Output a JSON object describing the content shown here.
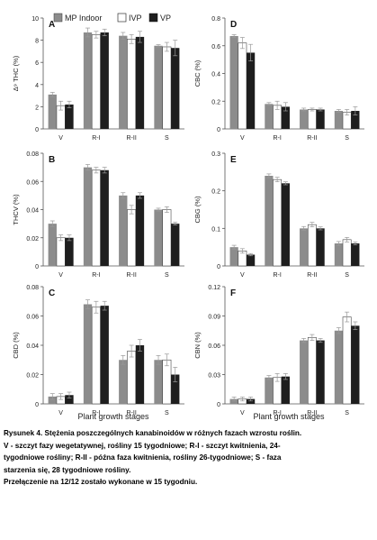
{
  "legend": {
    "items": [
      "MP Indoor",
      "IVP",
      "VP"
    ]
  },
  "colors": {
    "MP Indoor": "#8c8c8c",
    "IVP": "#ffffff",
    "VP": "#1e1e1e"
  },
  "xlabel_shared": "Plant growth stages",
  "chart_data": [
    {
      "type": "bar",
      "letter": "A",
      "ylabel": "Δ⁹ THC (%)",
      "ylim": [
        0,
        10
      ],
      "yticks": [
        "0",
        "2",
        "4",
        "6",
        "8",
        "10"
      ],
      "categories": [
        "V",
        "R-I",
        "R-II",
        "S"
      ],
      "series": [
        {
          "name": "MP Indoor",
          "values": [
            3.1,
            8.7,
            8.4,
            7.5
          ],
          "errors": [
            0.2,
            0.4,
            0.3,
            0.1
          ]
        },
        {
          "name": "IVP",
          "values": [
            2.1,
            8.5,
            8.1,
            7.4
          ],
          "errors": [
            0.4,
            0.3,
            0.4,
            0.4
          ]
        },
        {
          "name": "VP",
          "values": [
            2.2,
            8.7,
            8.3,
            7.3
          ],
          "errors": [
            0.3,
            0.3,
            0.5,
            0.7
          ]
        }
      ]
    },
    {
      "type": "bar",
      "letter": "D",
      "ylabel": "CBC (%)",
      "ylim": [
        0,
        0.8
      ],
      "yticks": [
        "0",
        "0.2",
        "0.4",
        "0.6",
        "0.8"
      ],
      "categories": [
        "V",
        "R-I",
        "R-II",
        "S"
      ],
      "series": [
        {
          "name": "MP Indoor",
          "values": [
            0.67,
            0.18,
            0.14,
            0.13
          ],
          "errors": [
            0.01,
            0.01,
            0.01,
            0.01
          ]
        },
        {
          "name": "IVP",
          "values": [
            0.62,
            0.17,
            0.14,
            0.12
          ],
          "errors": [
            0.04,
            0.03,
            0.01,
            0.02
          ]
        },
        {
          "name": "VP",
          "values": [
            0.55,
            0.16,
            0.14,
            0.13
          ],
          "errors": [
            0.06,
            0.03,
            0.01,
            0.03
          ]
        }
      ]
    },
    {
      "type": "bar",
      "letter": "B",
      "ylabel": "THCV (%)",
      "ylim": [
        0,
        0.08
      ],
      "yticks": [
        "0",
        "0.02",
        "0.04",
        "0.06",
        "0.08"
      ],
      "categories": [
        "V",
        "R-I",
        "R-II",
        "S"
      ],
      "series": [
        {
          "name": "MP Indoor",
          "values": [
            0.03,
            0.07,
            0.05,
            0.04
          ],
          "errors": [
            0.002,
            0.002,
            0.002,
            0.001
          ]
        },
        {
          "name": "IVP",
          "values": [
            0.02,
            0.068,
            0.04,
            0.04
          ],
          "errors": [
            0.002,
            0.002,
            0.003,
            0.002
          ]
        },
        {
          "name": "VP",
          "values": [
            0.02,
            0.068,
            0.05,
            0.03
          ],
          "errors": [
            0.002,
            0.002,
            0.002,
            0.001
          ]
        }
      ]
    },
    {
      "type": "bar",
      "letter": "E",
      "ylabel": "CBG (%)",
      "ylim": [
        0,
        0.3
      ],
      "yticks": [
        "0",
        "0.1",
        "0.2",
        "0.3"
      ],
      "categories": [
        "V",
        "R-I",
        "R-II",
        "S"
      ],
      "series": [
        {
          "name": "MP Indoor",
          "values": [
            0.05,
            0.24,
            0.1,
            0.06
          ],
          "errors": [
            0.005,
            0.005,
            0.005,
            0.005
          ]
        },
        {
          "name": "IVP",
          "values": [
            0.04,
            0.23,
            0.11,
            0.07
          ],
          "errors": [
            0.006,
            0.006,
            0.006,
            0.006
          ]
        },
        {
          "name": "VP",
          "values": [
            0.03,
            0.22,
            0.1,
            0.06
          ],
          "errors": [
            0.003,
            0.004,
            0.004,
            0.004
          ]
        }
      ]
    },
    {
      "type": "bar",
      "letter": "C",
      "ylabel": "CBD (%)",
      "ylim": [
        0,
        0.08
      ],
      "yticks": [
        "0",
        "0.02",
        "0.04",
        "0.06",
        "0.08"
      ],
      "categories": [
        "V",
        "R-I",
        "R-II",
        "S"
      ],
      "series": [
        {
          "name": "MP Indoor",
          "values": [
            0.005,
            0.068,
            0.03,
            0.03
          ],
          "errors": [
            0.002,
            0.003,
            0.003,
            0.003
          ]
        },
        {
          "name": "IVP",
          "values": [
            0.005,
            0.066,
            0.036,
            0.03
          ],
          "errors": [
            0.002,
            0.004,
            0.004,
            0.004
          ]
        },
        {
          "name": "VP",
          "values": [
            0.006,
            0.067,
            0.04,
            0.02
          ],
          "errors": [
            0.002,
            0.003,
            0.004,
            0.005
          ]
        }
      ]
    },
    {
      "type": "bar",
      "letter": "F",
      "ylabel": "CBN (%)",
      "ylim": [
        0,
        0.12
      ],
      "yticks": [
        "0",
        "0.03",
        "0.06",
        "0.09",
        "0.12"
      ],
      "categories": [
        "V",
        "R-I",
        "R-II",
        "S"
      ],
      "series": [
        {
          "name": "MP Indoor",
          "values": [
            0.005,
            0.027,
            0.065,
            0.075
          ],
          "errors": [
            0.002,
            0.002,
            0.002,
            0.003
          ]
        },
        {
          "name": "IVP",
          "values": [
            0.005,
            0.027,
            0.068,
            0.089
          ],
          "errors": [
            0.002,
            0.004,
            0.003,
            0.005
          ]
        },
        {
          "name": "VP",
          "values": [
            0.005,
            0.028,
            0.065,
            0.08
          ],
          "errors": [
            0.002,
            0.003,
            0.002,
            0.004
          ]
        }
      ]
    }
  ],
  "caption": {
    "line1": "Rysunek 4. Stężenia poszczególnych kanabinoidów w różnych fazach wzrostu roślin.",
    "line2": "V - szczyt fazy wegetatywnej, rośliny 15 tygodniowe; R-I - szczyt kwitnienia, 24-",
    "line3": "tygodniowe rośliny; R-II - późna faza kwitnienia, rośliny 26-tygodniowe; S - faza",
    "line4": "starzenia się, 28 tygodniowe rośliny.",
    "line5": "Przełączenie na 12/12 zostało wykonane w 15 tygodniu."
  }
}
